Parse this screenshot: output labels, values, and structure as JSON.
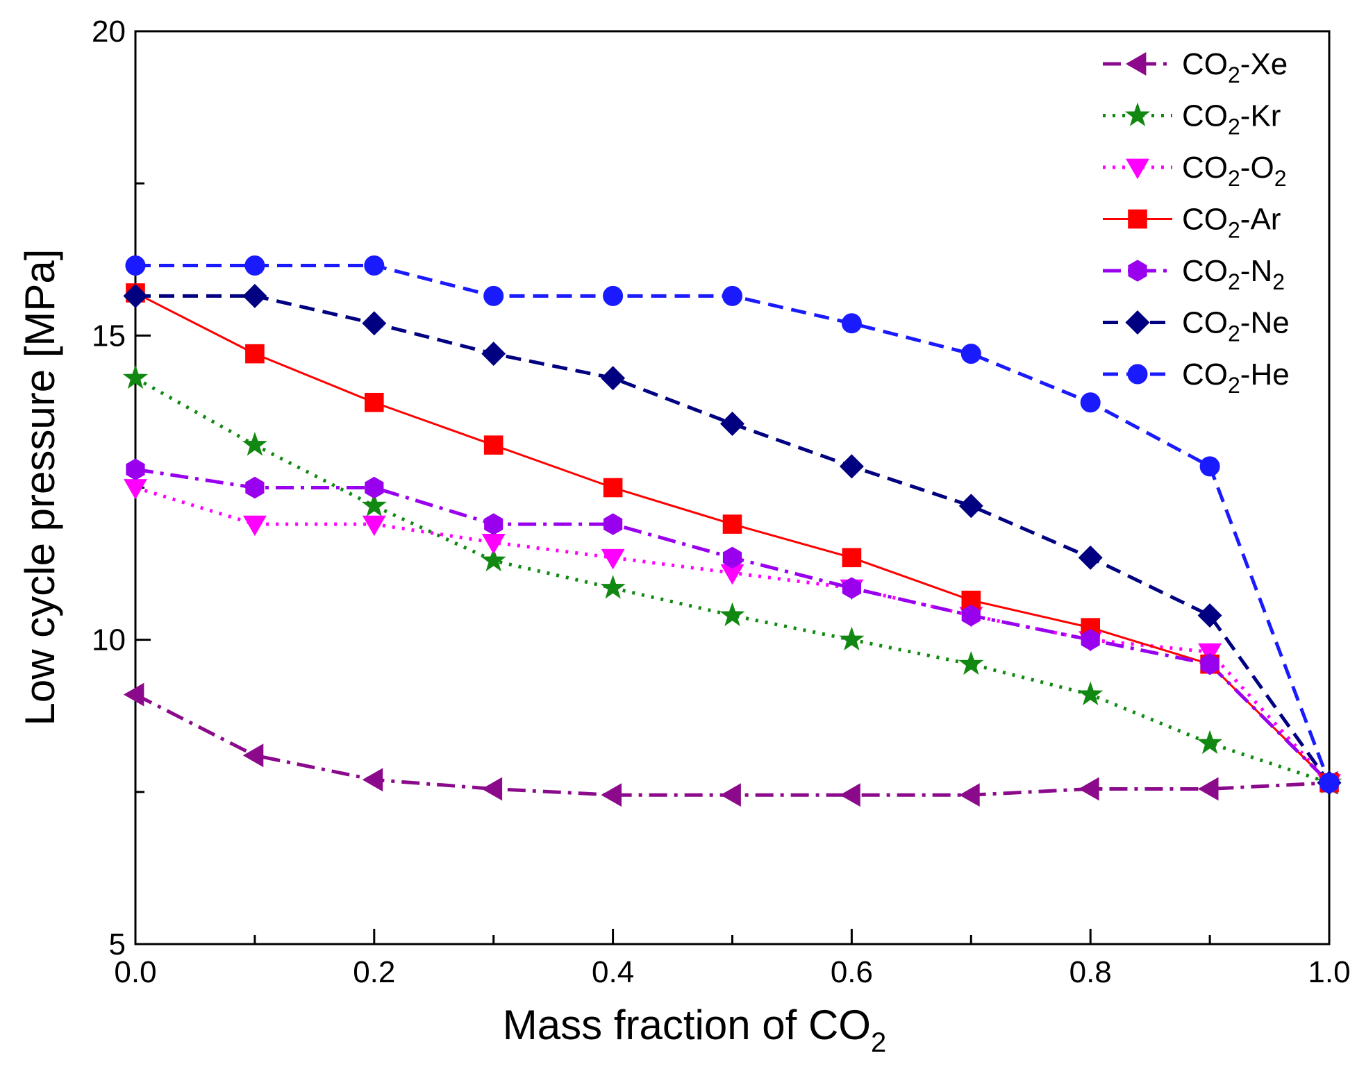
{
  "chart_data": {
    "type": "line",
    "xlabel": "Mass fraction of CO",
    "xlabel_sub": "2",
    "ylabel": "Low cycle pressure [MPa]",
    "xlim": [
      0.0,
      1.0
    ],
    "ylim": [
      5,
      20
    ],
    "x_ticks": [
      "0.0",
      "0.2",
      "0.4",
      "0.6",
      "0.8",
      "1.0"
    ],
    "y_ticks": [
      "5",
      "10",
      "15",
      "20"
    ],
    "legend_position": "top-right",
    "x": [
      0.0,
      0.1,
      0.2,
      0.3,
      0.4,
      0.5,
      0.6,
      0.7,
      0.8,
      0.9,
      1.0
    ],
    "series": [
      {
        "name": "CO2-Xe",
        "prefix": "CO",
        "sub": "2",
        "suffix": "-Xe",
        "color": "#8B0A8B",
        "dash": "dashdot",
        "marker": "triangle-left",
        "values": [
          9.1,
          8.1,
          7.7,
          7.55,
          7.45,
          7.45,
          7.45,
          7.45,
          7.55,
          7.55,
          7.65
        ]
      },
      {
        "name": "CO2-Kr",
        "prefix": "CO",
        "sub": "2",
        "suffix": "-Kr",
        "color": "#118811",
        "dash": "dot",
        "marker": "star",
        "values": [
          14.3,
          13.2,
          12.2,
          11.3,
          10.85,
          10.4,
          10.0,
          9.6,
          9.1,
          8.3,
          7.65
        ]
      },
      {
        "name": "CO2-O2",
        "prefix": "CO",
        "sub": "2",
        "suffix": "-O",
        "suffix_sub": "2",
        "color": "#FF00FF",
        "dash": "dot",
        "marker": "triangle-down",
        "values": [
          12.5,
          11.9,
          11.9,
          11.6,
          11.35,
          11.1,
          10.85,
          10.4,
          10.0,
          9.8,
          7.65
        ]
      },
      {
        "name": "CO2-Ar",
        "prefix": "CO",
        "sub": "2",
        "suffix": "-Ar",
        "color": "#FF0000",
        "dash": "solid",
        "marker": "square",
        "values": [
          15.7,
          14.7,
          13.9,
          13.2,
          12.5,
          11.9,
          11.35,
          10.65,
          10.2,
          9.6,
          7.65
        ]
      },
      {
        "name": "CO2-N2",
        "prefix": "CO",
        "sub": "2",
        "suffix": "-N",
        "suffix_sub": "2",
        "color": "#9900EE",
        "dash": "dashdot",
        "marker": "hexagon",
        "values": [
          12.8,
          12.5,
          12.5,
          11.9,
          11.9,
          11.35,
          10.85,
          10.4,
          10.0,
          9.6,
          7.65
        ]
      },
      {
        "name": "CO2-Ne",
        "prefix": "CO",
        "sub": "2",
        "suffix": "-Ne",
        "color": "#000080",
        "dash": "dash",
        "marker": "diamond",
        "values": [
          15.65,
          15.65,
          15.2,
          14.7,
          14.3,
          13.55,
          12.85,
          12.2,
          11.35,
          10.4,
          7.65
        ]
      },
      {
        "name": "CO2-He",
        "prefix": "CO",
        "sub": "2",
        "suffix": "-He",
        "color": "#1A1AFF",
        "dash": "dash",
        "marker": "circle",
        "values": [
          16.15,
          16.15,
          16.15,
          15.65,
          15.65,
          15.65,
          15.2,
          14.7,
          13.9,
          12.85,
          7.65
        ]
      }
    ]
  }
}
